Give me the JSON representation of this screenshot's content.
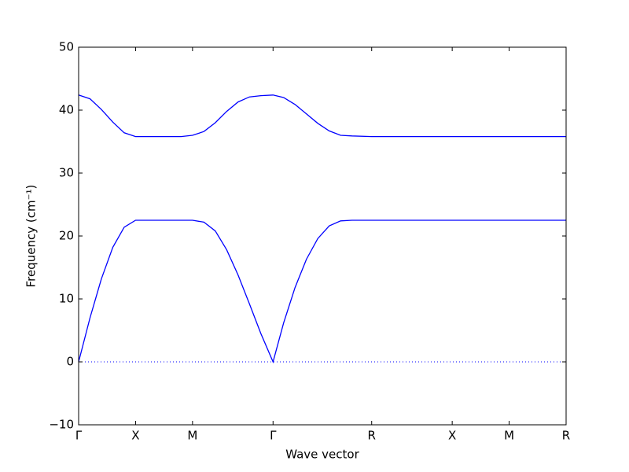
{
  "chart_data": {
    "type": "line",
    "xlabel": "Wave vector",
    "ylabel": "Frequency (cm⁻¹)",
    "x": [
      0,
      0.1,
      0.2,
      0.3,
      0.4,
      0.5,
      0.9,
      1.0,
      1.1,
      1.2,
      1.3,
      1.4,
      1.5,
      1.6,
      1.707,
      1.8,
      1.9,
      2.0,
      2.1,
      2.2,
      2.3,
      2.4,
      2.573,
      3.28,
      3.78,
      4.28
    ],
    "series": [
      {
        "color": "#0000ff",
        "values": [
          0,
          7.0,
          13.2,
          18.2,
          21.4,
          22.5,
          22.5,
          22.5,
          22.2,
          20.8,
          17.8,
          13.8,
          9.2,
          4.5,
          0,
          6.2,
          11.8,
          16.3,
          19.6,
          21.6,
          22.4,
          22.5,
          22.5,
          22.5,
          22.5,
          22.5
        ]
      },
      {
        "color": "#0000ff",
        "values": [
          42.4,
          41.8,
          40.1,
          38.1,
          36.4,
          35.8,
          35.8,
          36.0,
          36.6,
          38.0,
          39.8,
          41.3,
          42.1,
          42.3,
          42.4,
          42.0,
          40.9,
          39.4,
          37.9,
          36.7,
          36.0,
          35.9,
          35.8,
          35.8,
          35.8,
          35.8
        ]
      }
    ],
    "xlim": [
      0,
      4.28
    ],
    "xticks": [
      {
        "value": 0,
        "label": "Γ"
      },
      {
        "value": 0.5,
        "label": "X"
      },
      {
        "value": 1.0,
        "label": "M"
      },
      {
        "value": 1.707,
        "label": "Γ"
      },
      {
        "value": 2.573,
        "label": "R"
      },
      {
        "value": 3.28,
        "label": "X"
      },
      {
        "value": 3.78,
        "label": "M"
      },
      {
        "value": 4.28,
        "label": "R"
      }
    ],
    "ylim": [
      -10,
      50
    ],
    "yticks": [
      {
        "value": -10,
        "label": "−10"
      },
      0,
      10,
      20,
      30,
      40,
      50
    ],
    "hline": 0,
    "hline_color": "#0000ff"
  }
}
